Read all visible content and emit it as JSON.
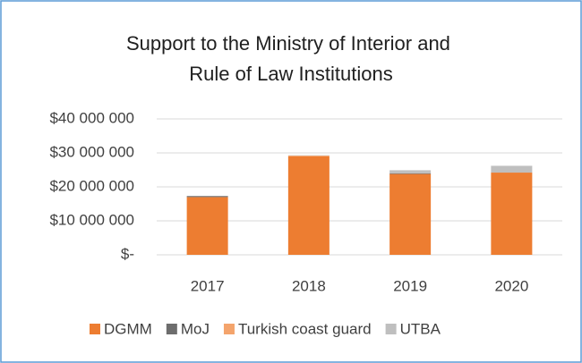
{
  "chart_data": {
    "type": "stacked_bar",
    "title": [
      "Support to the Ministry of Interior and",
      "Rule of Law Institutions"
    ],
    "categories": [
      "2017",
      "2018",
      "2019",
      "2020"
    ],
    "series": [
      {
        "name": "DGMM",
        "color": "#ed7d31",
        "values": [
          17000000,
          29000000,
          23800000,
          24200000
        ]
      },
      {
        "name": "MoJ",
        "color": "#6d6d6d",
        "values": [
          300000,
          0,
          200000,
          0
        ]
      },
      {
        "name": "Turkish coast guard",
        "color": "#f4a46c",
        "values": [
          0,
          200000,
          0,
          0
        ]
      },
      {
        "name": "UTBA",
        "color": "#bfbfbf",
        "values": [
          0,
          100000,
          900000,
          2000000
        ]
      }
    ],
    "ylim": [
      0,
      40000000
    ],
    "yticks": [
      {
        "value": 0,
        "label": "$-"
      },
      {
        "value": 10000000,
        "label": "$10 000 000"
      },
      {
        "value": 20000000,
        "label": "$20 000 000"
      },
      {
        "value": 30000000,
        "label": "$30 000 000"
      },
      {
        "value": 40000000,
        "label": "$40 000 000"
      }
    ],
    "grid": true,
    "legend": "bottom"
  }
}
